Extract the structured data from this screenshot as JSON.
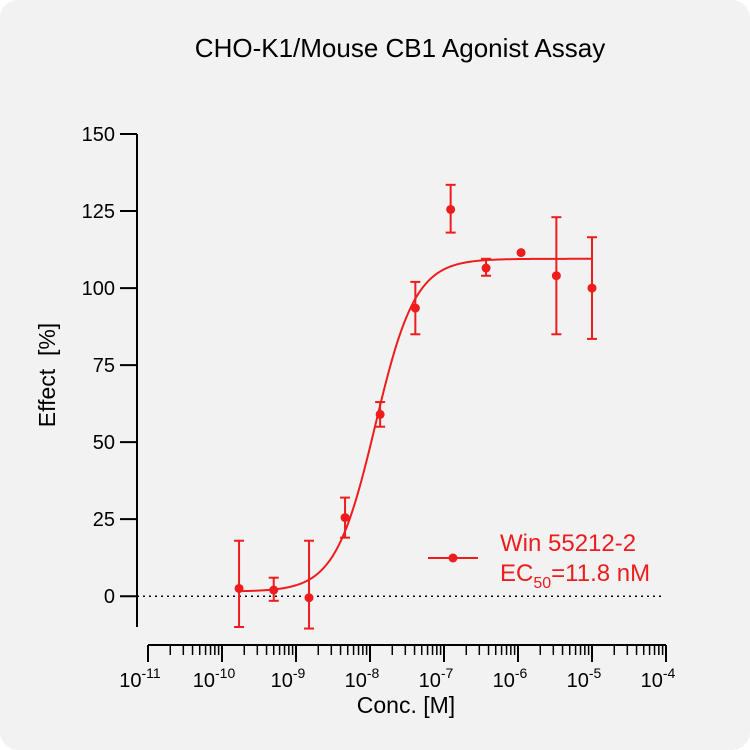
{
  "chart_data": {
    "type": "scatter",
    "title": "CHO-K1/Mouse CB1 Agonist Assay",
    "xlabel": "Conc. [M]",
    "ylabel": "Effect  [%]",
    "x_scale": "log",
    "xlim": [
      1e-11,
      0.0001
    ],
    "ylim": [
      -10,
      150
    ],
    "x_ticks": [
      {
        "base": "10",
        "exp": "-11"
      },
      {
        "base": "10",
        "exp": "-10"
      },
      {
        "base": "10",
        "exp": "-9"
      },
      {
        "base": "10",
        "exp": "-8"
      },
      {
        "base": "10",
        "exp": "-7"
      },
      {
        "base": "10",
        "exp": "-6"
      },
      {
        "base": "10",
        "exp": "-5"
      },
      {
        "base": "10",
        "exp": "-4"
      }
    ],
    "y_ticks": [
      "0",
      "25",
      "50",
      "75",
      "100",
      "125",
      "150"
    ],
    "reference_line": {
      "y": 0,
      "style": "dotted"
    },
    "legend": {
      "placement": "bottom-right",
      "series_label": "Win 55212-2",
      "ec50_prefix": "EC",
      "ec50_subscript": "50",
      "ec50_value": "=11.8 nM"
    },
    "series": [
      {
        "name": "Win 55212-2",
        "color": "#ee1c1c",
        "points": [
          {
            "x": 1.7e-10,
            "y": 2.5,
            "err_low": 12.5,
            "err_high": 15.5
          },
          {
            "x": 5e-10,
            "y": 2.0,
            "err_low": 3.5,
            "err_high": 4.0
          },
          {
            "x": 1.5e-09,
            "y": -0.5,
            "err_low": 10.0,
            "err_high": 18.5
          },
          {
            "x": 4.6e-09,
            "y": 25.5,
            "err_low": 6.5,
            "err_high": 6.5
          },
          {
            "x": 1.37e-08,
            "y": 59.0,
            "err_low": 4.0,
            "err_high": 4.0
          },
          {
            "x": 4.1e-08,
            "y": 93.5,
            "err_low": 8.5,
            "err_high": 8.5
          },
          {
            "x": 1.23e-07,
            "y": 125.5,
            "err_low": 7.5,
            "err_high": 8.0
          },
          {
            "x": 3.7e-07,
            "y": 106.5,
            "err_low": 2.5,
            "err_high": 3.0
          },
          {
            "x": 1.1e-06,
            "y": 111.5,
            "err_low": 0,
            "err_high": 0
          },
          {
            "x": 3.3e-06,
            "y": 104.0,
            "err_low": 19.0,
            "err_high": 19.0
          },
          {
            "x": 1e-05,
            "y": 100.0,
            "err_low": 16.5,
            "err_high": 16.5
          }
        ],
        "fit": {
          "bottom": 1.5,
          "top": 109.5,
          "ec50_M": 1.18e-08,
          "hill": 1.6
        }
      }
    ]
  }
}
